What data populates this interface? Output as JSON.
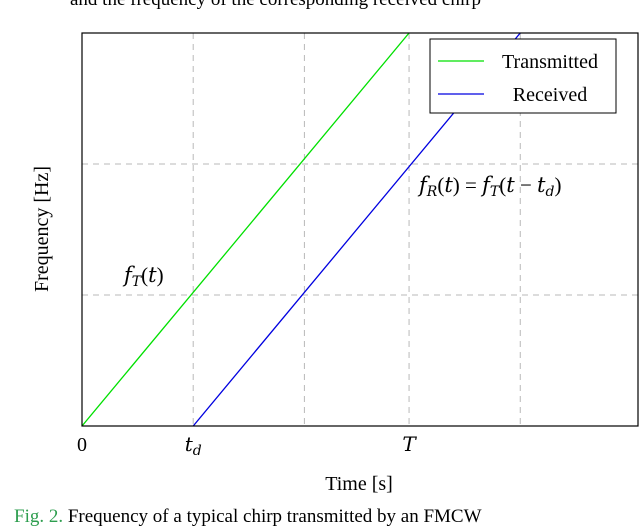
{
  "page": {
    "top_text": "and the frequency of the corresponding received chirp",
    "caption_prefix": "Fig. 2.",
    "caption_text": " Frequency of a typical chirp transmitted by an FMCW"
  },
  "chart_data": {
    "type": "line",
    "xlabel": "Time [s]",
    "ylabel": "Frequency [Hz]",
    "xlim": [
      0,
      1.7
    ],
    "ylim": [
      0,
      1.5
    ],
    "grid": true,
    "grid_x": [
      0.34,
      0.68,
      1.0,
      1.34
    ],
    "grid_y": [
      0.5,
      1.0
    ],
    "x_ticks": [
      {
        "value": 0,
        "label": "0"
      },
      {
        "value": 0.34,
        "label": "t_d"
      },
      {
        "value": 1.0,
        "label": "T"
      }
    ],
    "legend_position": "top-right",
    "series": [
      {
        "name": "Transmitted",
        "color": "#00e000",
        "x": [
          0,
          1.0
        ],
        "y": [
          0,
          1.5
        ]
      },
      {
        "name": "Received",
        "color": "#0000e0",
        "x": [
          0.34,
          1.34
        ],
        "y": [
          0,
          1.5
        ]
      }
    ],
    "annotations": [
      {
        "id": "ft",
        "text": "f_T(t)"
      },
      {
        "id": "fr",
        "text": "f_R(t) = f_T(t − t_d)"
      }
    ]
  }
}
